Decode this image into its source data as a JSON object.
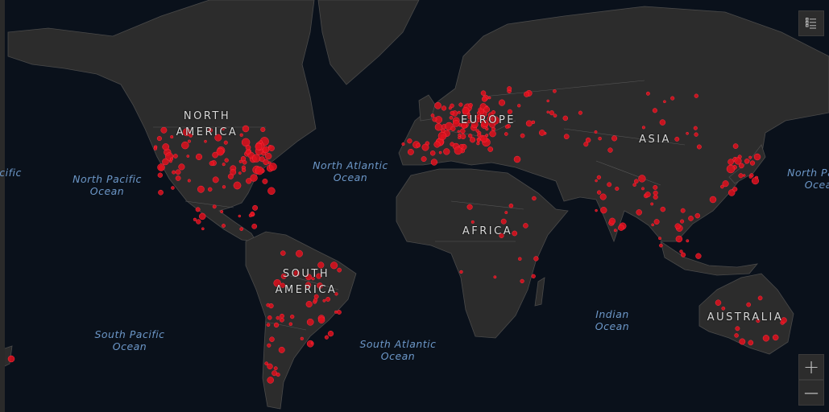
{
  "map": {
    "land_color": "#2c2c2c",
    "ocean_color": "#0a111b",
    "marker_color": "#e0101d",
    "continents": [
      {
        "id": "north-america",
        "lines": [
          "NORTH",
          "AMERICA"
        ]
      },
      {
        "id": "europe",
        "lines": [
          "EUROPE"
        ]
      },
      {
        "id": "asia",
        "lines": [
          "ASIA"
        ]
      },
      {
        "id": "africa",
        "lines": [
          "AFRICA"
        ]
      },
      {
        "id": "south-america",
        "lines": [
          "SOUTH",
          "AMERICA"
        ]
      },
      {
        "id": "australia",
        "lines": [
          "AUSTRALIA"
        ]
      }
    ],
    "oceans": [
      {
        "id": "pacific-left",
        "lines": [
          "Pacific"
        ]
      },
      {
        "id": "north-pacific",
        "lines": [
          "North Pacific",
          "Ocean"
        ]
      },
      {
        "id": "north-atlantic",
        "lines": [
          "North Atlantic",
          "Ocean"
        ]
      },
      {
        "id": "north-pacific-right",
        "lines": [
          "North Pacific",
          "Ocean"
        ]
      },
      {
        "id": "south-pacific",
        "lines": [
          "South Pacific",
          "Ocean"
        ]
      },
      {
        "id": "south-atlantic",
        "lines": [
          "South Atlantic",
          "Ocean"
        ]
      },
      {
        "id": "indian",
        "lines": [
          "Indian",
          "Ocean"
        ]
      }
    ]
  },
  "controls": {
    "legend_icon": "list-icon",
    "zoom_in": "+",
    "zoom_out": "—"
  }
}
